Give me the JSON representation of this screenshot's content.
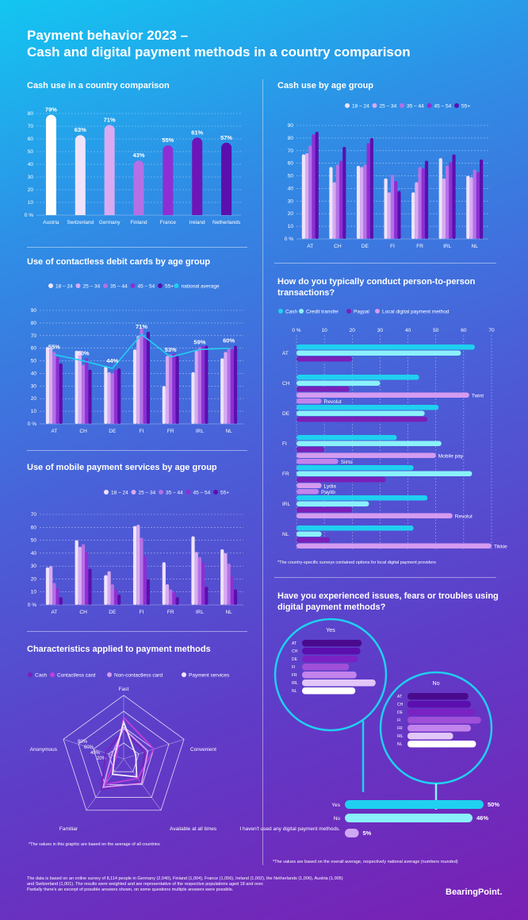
{
  "header": {
    "line1": "Payment behavior 2023 –",
    "line2": "Cash and digital payment methods in a country comparison"
  },
  "colors": {
    "age_18_24": "#efe3fb",
    "age_25_34": "#d9aaf2",
    "age_35_44": "#b670e6",
    "age_45_54": "#8e2fd4",
    "age_55_plus": "#5b0fae",
    "national": "#1fd0f0",
    "cash": "#1fd0f0",
    "credit": "#8af1fb",
    "paypal": "#7a1fb8",
    "local": "#d49bf0",
    "yes": "#1fd0f0",
    "no": "#8af1fb"
  },
  "chart_data": [
    {
      "id": "cash_country",
      "type": "bar",
      "title": "Cash use in a country comparison",
      "categories": [
        "Austria",
        "Switzerland",
        "Germany",
        "Finland",
        "France",
        "Ireland",
        "Netherlands"
      ],
      "values": [
        79,
        63,
        71,
        43,
        55,
        61,
        57
      ],
      "data_labels": [
        "79%",
        "63%",
        "71%",
        "43%",
        "55%",
        "61%",
        "57%"
      ],
      "bar_colors": [
        "#ffffff",
        "#efe3fb",
        "#d9aaf2",
        "#b670e6",
        "#8e2fd4",
        "#6d15b8",
        "#5b0fae"
      ],
      "yticks": [
        "0 %",
        "10",
        "20",
        "30",
        "40",
        "50",
        "60",
        "70",
        "80"
      ],
      "ylim": [
        0,
        80
      ]
    },
    {
      "id": "cash_age",
      "type": "bar",
      "title": "Cash use by age group",
      "categories": [
        "AT",
        "CH",
        "DE",
        "FI",
        "FR",
        "IRL",
        "NL"
      ],
      "series": [
        {
          "name": "18 – 24",
          "values": [
            67,
            57,
            58,
            48,
            37,
            64,
            50
          ]
        },
        {
          "name": "25 – 34",
          "values": [
            68,
            45,
            57,
            37,
            45,
            48,
            49
          ]
        },
        {
          "name": "35 – 44",
          "values": [
            74,
            59,
            59,
            51,
            57,
            58,
            55
          ]
        },
        {
          "name": "45 – 54",
          "values": [
            83,
            62,
            76,
            46,
            56,
            61,
            53
          ]
        },
        {
          "name": "55+",
          "values": [
            85,
            73,
            80,
            38,
            62,
            67,
            63
          ]
        }
      ],
      "yticks": [
        "0 %",
        "10",
        "20",
        "30",
        "40",
        "50",
        "60",
        "70",
        "80",
        "90"
      ],
      "ylim": [
        0,
        90
      ]
    },
    {
      "id": "contactless",
      "type": "bar",
      "title": "Use of contactless debit cards by age group",
      "categories": [
        "AT",
        "CH",
        "DE",
        "FI",
        "FR",
        "IRL",
        "NL"
      ],
      "series": [
        {
          "name": "18 – 24",
          "values": [
            61,
            58,
            46,
            59,
            30,
            41,
            52
          ]
        },
        {
          "name": "25 – 34",
          "values": [
            60,
            58,
            41,
            70,
            54,
            58,
            57
          ]
        },
        {
          "name": "35 – 44",
          "values": [
            57,
            47,
            40,
            76,
            55,
            61,
            60
          ]
        },
        {
          "name": "45 – 54",
          "values": [
            53,
            52,
            43,
            68,
            56,
            62,
            59
          ]
        },
        {
          "name": "55+",
          "values": [
            48,
            43,
            44,
            73,
            54,
            62,
            62
          ]
        }
      ],
      "national_average": {
        "name": "national average",
        "values": [
          55,
          50,
          44,
          71,
          53,
          59,
          60
        ],
        "labels": [
          "55%",
          "50%",
          "44%",
          "71%",
          "53%",
          "59%",
          "60%"
        ]
      },
      "yticks": [
        "0 %",
        "10",
        "20",
        "30",
        "40",
        "50",
        "60",
        "70",
        "80",
        "90"
      ],
      "ylim": [
        0,
        90
      ]
    },
    {
      "id": "mobile",
      "type": "bar",
      "title": "Use of mobile payment services by age group",
      "categories": [
        "AT",
        "CH",
        "DE",
        "FI",
        "FR",
        "IRL",
        "NL"
      ],
      "series": [
        {
          "name": "18 – 24",
          "values": [
            29,
            50,
            23,
            61,
            33,
            53,
            43
          ]
        },
        {
          "name": "25 – 34",
          "values": [
            30,
            45,
            26,
            62,
            16,
            41,
            40
          ]
        },
        {
          "name": "35 – 44",
          "values": [
            17,
            47,
            16,
            52,
            12,
            37,
            32
          ]
        },
        {
          "name": "45 – 54",
          "values": [
            13,
            41,
            12,
            38,
            10,
            33,
            22
          ]
        },
        {
          "name": "55+",
          "values": [
            6,
            28,
            8,
            20,
            6,
            14,
            12
          ]
        }
      ],
      "yticks": [
        "0 %",
        "10",
        "20",
        "30",
        "40",
        "50",
        "60",
        "70"
      ],
      "ylim": [
        0,
        70
      ]
    },
    {
      "id": "p2p",
      "type": "bar",
      "orientation": "horizontal",
      "title": "How do you typically conduct person-to-person transactions?",
      "categories": [
        "AT",
        "CH",
        "DE",
        "FI",
        "FR",
        "IRL",
        "NL"
      ],
      "series": [
        {
          "name": "Cash",
          "values": [
            64,
            44,
            51,
            36,
            42,
            47,
            42
          ]
        },
        {
          "name": "Credit transfer",
          "values": [
            59,
            30,
            46,
            52,
            63,
            26,
            9
          ]
        },
        {
          "name": "Paypal",
          "values": [
            20,
            19,
            47,
            10,
            32,
            20,
            12
          ]
        },
        {
          "name": "Local digital payment method",
          "values": [
            null,
            62,
            null,
            50,
            9,
            56,
            70
          ]
        }
      ],
      "extra_bars": [
        {
          "category": "CH",
          "name": "Revolut",
          "value": 9
        },
        {
          "category": "FI",
          "name": "Siirto",
          "value": 15
        },
        {
          "category": "FR",
          "name": "Paylib",
          "value": 8
        }
      ],
      "bar_labels": {
        "CH": [
          "Twint",
          "Revolut"
        ],
        "FI": [
          "Mobile pay",
          "Siirto"
        ],
        "FR": [
          "Lydia",
          "Paylib"
        ],
        "IRL": [
          "Revolut"
        ],
        "NL": [
          "Tikkie"
        ]
      },
      "xticks": [
        "0 %",
        "10",
        "20",
        "30",
        "40",
        "50",
        "60",
        "70"
      ],
      "xlim": [
        0,
        70
      ],
      "note": "*The country-specific surveys contained options for local digital payment providers"
    },
    {
      "id": "radar",
      "type": "radar",
      "title": "Characteristics applied to payment methods",
      "axes": [
        "Fast",
        "Convenient",
        "Available at all times",
        "Familiar",
        "Anonymous"
      ],
      "rings": [
        "20%",
        "40%",
        "60%",
        "80%"
      ],
      "series": [
        {
          "name": "Cash",
          "values": [
            45,
            35,
            45,
            60,
            30
          ]
        },
        {
          "name": "Contactless card",
          "values": [
            65,
            50,
            38,
            50,
            12
          ]
        },
        {
          "name": "Non-contactless card",
          "values": [
            48,
            40,
            48,
            55,
            20
          ]
        },
        {
          "name": "Payment services",
          "values": [
            58,
            20,
            35,
            30,
            15
          ]
        }
      ],
      "rlim": [
        0,
        100
      ],
      "note": "*The values in this graphic are based on the average of all countries"
    },
    {
      "id": "issues",
      "type": "bar",
      "orientation": "horizontal",
      "title": "Have you experienced issues, fears or troubles using digital payment methods?",
      "categories": [
        "Yes",
        "No",
        "I haven't used any digital payment methods."
      ],
      "values": [
        50,
        46,
        5
      ],
      "data_labels": [
        "50%",
        "46%",
        "5%"
      ],
      "yes_breakdown": {
        "label": "Yes",
        "categories": [
          "AT",
          "CH",
          "DE",
          "FI",
          "FR",
          "IRL",
          "NL"
        ],
        "values": [
          47,
          46,
          44,
          37,
          43,
          58,
          42
        ]
      },
      "no_breakdown": {
        "label": "No",
        "categories": [
          "AT",
          "CH",
          "DE",
          "FI",
          "FR",
          "IRL",
          "NL"
        ],
        "values": [
          48,
          50,
          53,
          58,
          50,
          36,
          54
        ]
      },
      "note": "*The values are based on the overall average, respectively national average (numbers rounded)"
    }
  ],
  "footer": {
    "line1": "The data is based on an online survey of 8,114 people in Germany (2,040), Finland (1,004), France (1,056), Ireland (1,002), the Netherlands (1,006), Austria (1,005)",
    "line2": "and Switzerland (1,001). The results were weighted and are representative of the respective populations aged 18 and over.",
    "line3": "Partially there's an excerpt of possible answers shown, on some questions multiple answers were possible.",
    "brand": "BearingPoint."
  }
}
